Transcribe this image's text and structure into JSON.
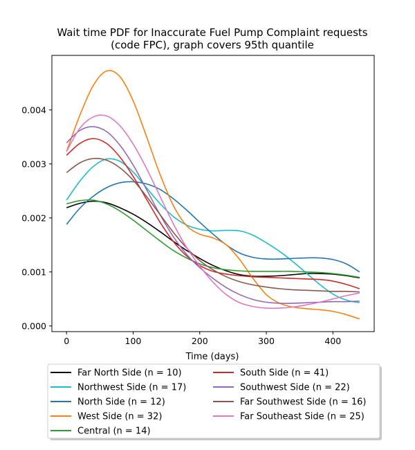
{
  "chart_data": {
    "type": "line",
    "title_lines": [
      "Wait time PDF for Inaccurate Fuel Pump Complaint  requests",
      "(code FPC), graph covers 95th quantile"
    ],
    "xlabel": "Time (days)",
    "ylabel": "",
    "xlim": [
      -22,
      462
    ],
    "ylim": [
      -0.000105,
      0.00501
    ],
    "x_ticks": [
      0,
      100,
      200,
      300,
      400
    ],
    "y_ticks": [
      0.0,
      0.001,
      0.002,
      0.003,
      0.004
    ],
    "y_tick_labels": [
      "0.000",
      "0.001",
      "0.002",
      "0.003",
      "0.004"
    ],
    "grid": false,
    "legend_position": "below",
    "x": [
      0,
      20,
      40,
      60,
      80,
      100,
      120,
      140,
      160,
      180,
      200,
      220,
      240,
      260,
      280,
      300,
      320,
      340,
      360,
      380,
      400,
      420,
      440
    ],
    "series": [
      {
        "name": "Far North Side (n = 10)",
        "color": "#000000",
        "values": [
          0.00219,
          0.00227,
          0.00231,
          0.00228,
          0.00219,
          0.00207,
          0.00192,
          0.00175,
          0.00157,
          0.0014,
          0.00125,
          0.00112,
          0.00102,
          0.00095,
          0.00092,
          0.00092,
          0.00093,
          0.00095,
          0.00097,
          0.00097,
          0.00096,
          0.00093,
          0.00089
        ]
      },
      {
        "name": "Northwest Side (n = 17)",
        "color": "#17becf",
        "values": [
          0.00233,
          0.00268,
          0.00295,
          0.00309,
          0.00305,
          0.00285,
          0.00256,
          0.00227,
          0.00203,
          0.00187,
          0.00179,
          0.00176,
          0.00177,
          0.00176,
          0.00168,
          0.00154,
          0.00138,
          0.00119,
          0.00098,
          0.00077,
          0.00059,
          0.00048,
          0.00043
        ]
      },
      {
        "name": "North Side (n = 12)",
        "color": "#1f77b4",
        "values": [
          0.00188,
          0.00218,
          0.0024,
          0.00256,
          0.00265,
          0.00267,
          0.00263,
          0.00253,
          0.00236,
          0.00215,
          0.00192,
          0.0017,
          0.0015,
          0.00135,
          0.00127,
          0.00124,
          0.00124,
          0.00125,
          0.00126,
          0.00126,
          0.00123,
          0.00115,
          0.001
        ]
      },
      {
        "name": "West Side (n = 32)",
        "color": "#ff7f0e",
        "values": [
          0.00323,
          0.0039,
          0.00445,
          0.00472,
          0.00462,
          0.00417,
          0.00351,
          0.00282,
          0.00224,
          0.00186,
          0.0017,
          0.00163,
          0.0015,
          0.00123,
          0.00088,
          0.00058,
          0.00042,
          0.00035,
          0.00032,
          0.0003,
          0.00027,
          0.00021,
          0.00013
        ]
      },
      {
        "name": "Central (n = 14)",
        "color": "#2ca02c",
        "values": [
          0.00226,
          0.00232,
          0.00233,
          0.00226,
          0.00213,
          0.00196,
          0.00177,
          0.00158,
          0.0014,
          0.00126,
          0.00115,
          0.00108,
          0.00104,
          0.00102,
          0.00101,
          0.00101,
          0.00101,
          0.00101,
          0.001,
          0.00099,
          0.00097,
          0.00094,
          0.0009
        ]
      },
      {
        "name": "South Side (n = 41)",
        "color": "#d62728",
        "values": [
          0.00316,
          0.00338,
          0.00347,
          0.00338,
          0.00313,
          0.00277,
          0.00235,
          0.00193,
          0.00157,
          0.0013,
          0.00112,
          0.00101,
          0.00096,
          0.00093,
          0.00091,
          0.0009,
          0.00089,
          0.00088,
          0.00087,
          0.00086,
          0.00083,
          0.00077,
          0.00069
        ]
      },
      {
        "name": "Southwest Side (n = 22)",
        "color": "#9467bd",
        "values": [
          0.00339,
          0.00362,
          0.00369,
          0.0036,
          0.00335,
          0.00298,
          0.00253,
          0.00207,
          0.00166,
          0.00133,
          0.00108,
          0.00088,
          0.00071,
          0.00058,
          0.00049,
          0.00044,
          0.00042,
          0.00042,
          0.00043,
          0.00044,
          0.00045,
          0.00045,
          0.00046
        ]
      },
      {
        "name": "Far Southwest Side (n = 16)",
        "color": "#8c564b",
        "values": [
          0.00284,
          0.00302,
          0.0031,
          0.00307,
          0.00293,
          0.0027,
          0.0024,
          0.00207,
          0.00174,
          0.00145,
          0.00121,
          0.00104,
          0.00091,
          0.00082,
          0.00076,
          0.00072,
          0.00069,
          0.00067,
          0.00066,
          0.00065,
          0.00064,
          0.00064,
          0.00063
        ]
      },
      {
        "name": "Far Southeast Side (n = 25)",
        "color": "#e377c2",
        "values": [
          0.00323,
          0.00366,
          0.00387,
          0.00389,
          0.00371,
          0.00337,
          0.00292,
          0.00241,
          0.0019,
          0.00146,
          0.00111,
          0.00081,
          0.00058,
          0.00043,
          0.00036,
          0.00033,
          0.00033,
          0.00035,
          0.00039,
          0.00044,
          0.0005,
          0.00056,
          0.00061
        ]
      }
    ],
    "legend_order": [
      0,
      1,
      2,
      3,
      4,
      5,
      6,
      7,
      8
    ]
  }
}
